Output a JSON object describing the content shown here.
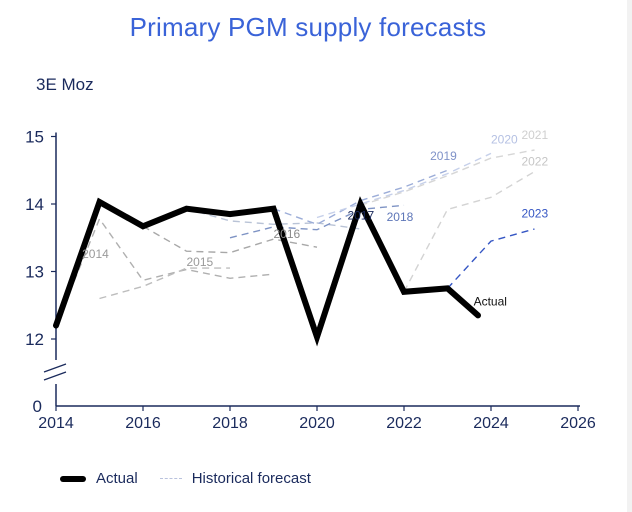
{
  "colors": {
    "title": "#3a63d8",
    "axis": "#1a2a5c",
    "actual": "#000000",
    "forecast_palette": {
      "2014": "#b0b0b0",
      "2015": "#bdbdbd",
      "2016": "#a8a8a8",
      "2017": "#b9c3d6",
      "2018": "#7e93c4",
      "2019": "#9cadd8",
      "2020": "#c6d0ea",
      "2021": "#d6d6d6",
      "2022": "#d3d3d3",
      "2023": "#3556c4"
    }
  },
  "chart_data": {
    "type": "line",
    "title": "Primary PGM supply forecasts",
    "ylabel": "3E Moz",
    "xlabel": "",
    "xlim": [
      2014,
      2026
    ],
    "ylim": [
      12,
      15
    ],
    "y_axis_break": true,
    "y_baseline_label": "0",
    "x_ticks": [
      "2014",
      "2016",
      "2018",
      "2020",
      "2022",
      "2024",
      "2026"
    ],
    "y_ticks": [
      "12",
      "13",
      "14",
      "15"
    ],
    "grid": false,
    "legend_position": "bottom-left",
    "legend": [
      "Actual",
      "Historical forecast"
    ],
    "actual": {
      "name": "Actual",
      "x": [
        2014,
        2015,
        2016,
        2017,
        2018,
        2019,
        2020,
        2021,
        2022,
        2023,
        2023.7
      ],
      "y": [
        12.2,
        14.03,
        13.67,
        13.93,
        13.85,
        13.93,
        12.03,
        14.0,
        12.7,
        12.75,
        12.35
      ]
    },
    "forecasts": [
      {
        "name": "2014",
        "x": [
          2014,
          2015,
          2016,
          2017,
          2018,
          2019
        ],
        "y": [
          12.2,
          13.78,
          12.87,
          13.03,
          12.9,
          12.96
        ]
      },
      {
        "name": "2015",
        "x": [
          2015,
          2016,
          2017,
          2018
        ],
        "y": [
          12.6,
          12.78,
          13.05,
          13.05
        ]
      },
      {
        "name": "2016",
        "x": [
          2016,
          2017,
          2018,
          2019,
          2020
        ],
        "y": [
          13.67,
          13.3,
          13.28,
          13.48,
          13.36
        ]
      },
      {
        "name": "2017",
        "x": [
          2017,
          2018,
          2019,
          2020,
          2021
        ],
        "y": [
          13.93,
          13.75,
          13.7,
          13.72,
          13.63
        ]
      },
      {
        "name": "2018",
        "x": [
          2018,
          2019,
          2020,
          2021,
          2022
        ],
        "y": [
          13.5,
          13.66,
          13.62,
          13.92,
          13.98
        ]
      },
      {
        "name": "2019",
        "x": [
          2019,
          2020,
          2021,
          2022,
          2023
        ],
        "y": [
          13.93,
          13.7,
          14.05,
          14.25,
          14.5
        ]
      },
      {
        "name": "2020",
        "x": [
          2020,
          2021,
          2022,
          2023,
          2024
        ],
        "y": [
          13.8,
          14.0,
          14.2,
          14.45,
          14.75
        ]
      },
      {
        "name": "2021",
        "x": [
          2021,
          2022,
          2023,
          2024,
          2025
        ],
        "y": [
          13.98,
          14.18,
          14.42,
          14.68,
          14.8
        ]
      },
      {
        "name": "2022",
        "x": [
          2022,
          2023,
          2024,
          2025
        ],
        "y": [
          12.7,
          13.92,
          14.1,
          14.48
        ]
      },
      {
        "name": "2023",
        "x": [
          2023,
          2024,
          2025
        ],
        "y": [
          12.75,
          13.45,
          13.63
        ]
      }
    ],
    "annotations": [
      "2014",
      "2015",
      "2016",
      "2017",
      "2018",
      "2019",
      "2020",
      "2021",
      "2022",
      "2023",
      "Actual"
    ]
  }
}
